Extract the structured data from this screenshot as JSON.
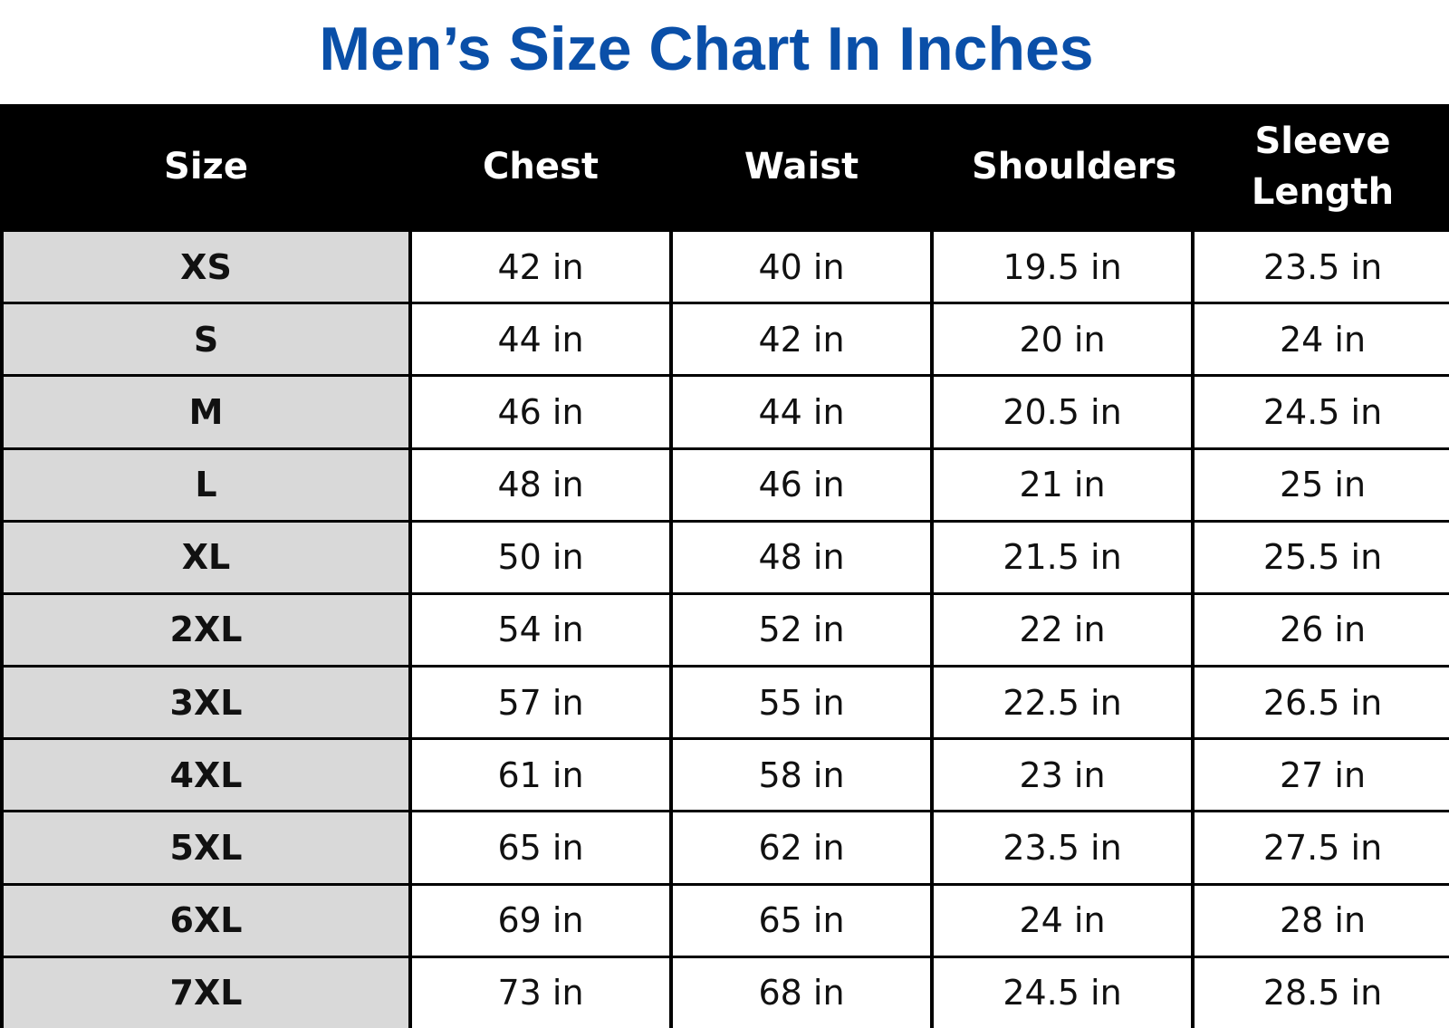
{
  "header": {
    "title": "Men’s Size Chart In Inches"
  },
  "table": {
    "columns": [
      "Size",
      "Chest",
      "Waist",
      "Shoulders",
      "Sleeve Length"
    ],
    "rows": [
      [
        "XS",
        "42 in",
        "40 in",
        "19.5 in",
        "23.5 in"
      ],
      [
        "S",
        "44 in",
        "42 in",
        "20 in",
        "24 in"
      ],
      [
        "M",
        "46 in",
        "44 in",
        "20.5 in",
        "24.5 in"
      ],
      [
        "L",
        "48 in",
        "46 in",
        "21 in",
        "25 in"
      ],
      [
        "XL",
        "50 in",
        "48 in",
        "21.5 in",
        "25.5 in"
      ],
      [
        "2XL",
        "54 in",
        "52 in",
        "22 in",
        "26 in"
      ],
      [
        "3XL",
        "57 in",
        "55 in",
        "22.5 in",
        "26.5 in"
      ],
      [
        "4XL",
        "61 in",
        "58 in",
        "23 in",
        "27 in"
      ],
      [
        "5XL",
        "65 in",
        "62 in",
        "23.5 in",
        "27.5 in"
      ],
      [
        "6XL",
        "69 in",
        "65 in",
        "24 in",
        "28 in"
      ],
      [
        "7XL",
        "73 in",
        "68 in",
        "24.5 in",
        "28.5 in"
      ]
    ]
  }
}
